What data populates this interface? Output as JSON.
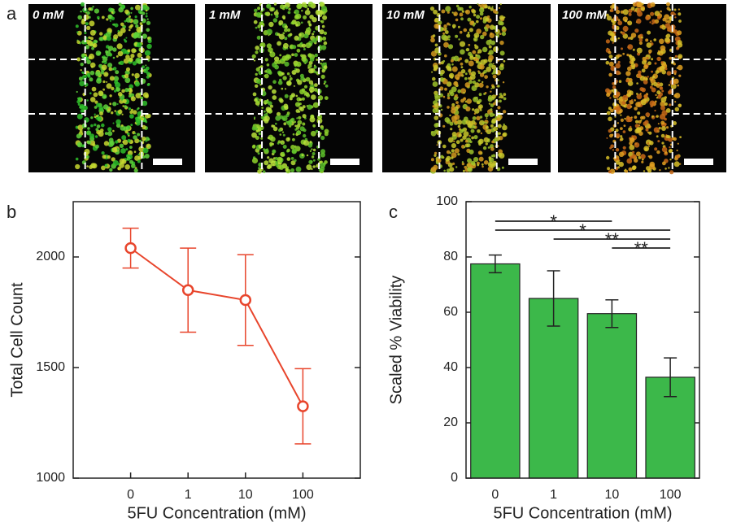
{
  "figure": {
    "panel_labels": [
      "a",
      "b",
      "c"
    ],
    "images": [
      {
        "label": "0 mM"
      },
      {
        "label": "1 mM"
      },
      {
        "label": "10 mM"
      },
      {
        "label": "100 mM"
      }
    ]
  },
  "chart_data": [
    {
      "type": "line",
      "x_label": "5FU Concentration (mM)",
      "y_label": "Total Cell Count",
      "categories": [
        "0",
        "1",
        "10",
        "100"
      ],
      "series": [
        {
          "name": "Total Cell Count",
          "color": "#e8452c",
          "values": [
            2040,
            1850,
            1805,
            1325
          ],
          "errors": [
            90,
            190,
            205,
            170
          ]
        }
      ],
      "ylim": [
        1000,
        2250
      ],
      "yticks": [
        1000,
        1500,
        2000
      ]
    },
    {
      "type": "bar",
      "x_label": "5FU Concentration (mM)",
      "y_label": "Scaled % Viability",
      "categories": [
        "0",
        "1",
        "10",
        "100"
      ],
      "series": [
        {
          "name": "Scaled % Viability",
          "color": "#3cb84a",
          "values": [
            77.5,
            65,
            59.5,
            36.5
          ],
          "errors": [
            3.2,
            10,
            5,
            7
          ]
        }
      ],
      "ylim": [
        0,
        100
      ],
      "yticks": [
        0,
        20,
        40,
        60,
        80,
        100
      ],
      "annotations": [
        {
          "text": "*",
          "categories": [
            "0",
            "10"
          ]
        },
        {
          "text": "*",
          "categories": [
            "0",
            "100"
          ]
        },
        {
          "text": "**",
          "categories": [
            "1",
            "100"
          ]
        },
        {
          "text": "**",
          "categories": [
            "10",
            "100"
          ]
        }
      ]
    }
  ]
}
